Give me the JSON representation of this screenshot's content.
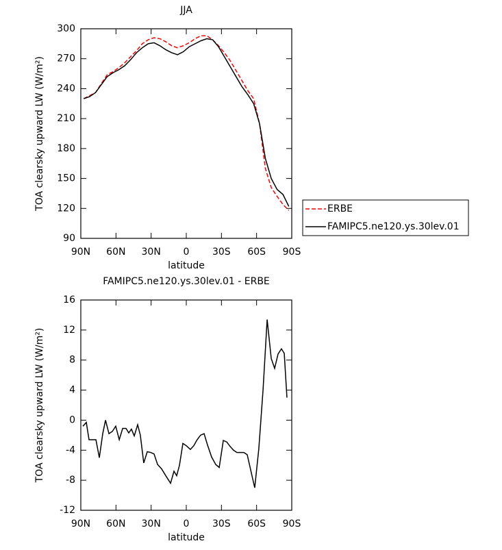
{
  "chart_data": [
    {
      "type": "line",
      "title": "JJA",
      "xlabel": "latitude",
      "ylabel": "TOA clearsky upward LW (W/m²)",
      "x": [
        87.5,
        82.5,
        77.5,
        72.5,
        67.5,
        62.5,
        57.5,
        52.5,
        47.5,
        42.5,
        37.5,
        32.5,
        27.5,
        22.5,
        17.5,
        12.5,
        7.5,
        2.5,
        -2.5,
        -7.5,
        -12.5,
        -17.5,
        -22.5,
        -27.5,
        -32.5,
        -37.5,
        -42.5,
        -47.5,
        -52.5,
        -57.5,
        -62.5,
        -67.5,
        -72.5,
        -77.5,
        -82.5,
        -87.5
      ],
      "series": [
        {
          "name": "ERBE",
          "color": "#ff0000",
          "linestyle": "dashed",
          "values": [
            230,
            233,
            236,
            245,
            254,
            257,
            261,
            266,
            272,
            278,
            285,
            289,
            291,
            290,
            287,
            283,
            281,
            283,
            286,
            290,
            293,
            293,
            289,
            283,
            276,
            268,
            258,
            248,
            238,
            230,
            205,
            160,
            141,
            132,
            124,
            118
          ]
        },
        {
          "name": "FAMIPC5.ne120.ys.30lev.01",
          "color": "#000000",
          "linestyle": "solid",
          "values": [
            230,
            232,
            236,
            244,
            252,
            256,
            259,
            263,
            269,
            276,
            281,
            285,
            286,
            283,
            279,
            276,
            274,
            277,
            282,
            285,
            288,
            290,
            289,
            282,
            272,
            262,
            252,
            242,
            234,
            225,
            205,
            170,
            150,
            139,
            134,
            122
          ]
        }
      ],
      "xlim": [
        90,
        -90
      ],
      "xticks": [
        {
          "value": 90,
          "label": "90N"
        },
        {
          "value": 60,
          "label": "60N"
        },
        {
          "value": 30,
          "label": "30N"
        },
        0,
        {
          "value": -30,
          "label": "30S"
        },
        {
          "value": -60,
          "label": "60S"
        },
        {
          "value": -90,
          "label": "90S"
        }
      ],
      "ylim": [
        90,
        300
      ],
      "yticks": [
        90,
        120,
        150,
        180,
        210,
        240,
        270,
        300
      ],
      "legend": "right"
    },
    {
      "type": "line",
      "title": "FAMIPC5.ne120.ys.30lev.01 - ERBE",
      "xlabel": "latitude",
      "ylabel": "TOA clearsky upward LW (W/m²)",
      "x": [
        88.2,
        85.3,
        83.0,
        77.1,
        74.2,
        71.3,
        68.9,
        66.0,
        63.1,
        60.2,
        57.2,
        54.3,
        51.4,
        49.1,
        46.8,
        44.4,
        41.5,
        39.2,
        36.3,
        33.3,
        30.4,
        27.5,
        24.5,
        21.0,
        17.5,
        13.4,
        10.5,
        8.2,
        5.8,
        2.9,
        0.0,
        -3.5,
        -6.4,
        -9.3,
        -12.2,
        -15.2,
        -18.1,
        -21.6,
        -25.1,
        -28.1,
        -31.6,
        -34.5,
        -37.4,
        -40.3,
        -43.2,
        -49.1,
        -52.0,
        -58.4,
        -61.9,
        -65.5,
        -69.0,
        -72.5,
        -75.4,
        -78.3,
        -81.2,
        -83.6,
        -85.9
      ],
      "values": [
        -0.8,
        -0.3,
        -2.6,
        -2.6,
        -5.0,
        -1.8,
        0,
        -1.8,
        -1.5,
        -0.8,
        -2.6,
        -1.1,
        -1.1,
        -1.7,
        -1.2,
        -2.1,
        -0.6,
        -2.0,
        -5.7,
        -4.2,
        -4.3,
        -4.5,
        -5.9,
        -6.5,
        -7.4,
        -8.4,
        -6.8,
        -7.4,
        -6.0,
        -3.1,
        -3.4,
        -3.9,
        -3.4,
        -2.6,
        -2.0,
        -1.8,
        -3.3,
        -4.9,
        -5.9,
        -6.3,
        -2.7,
        -2.9,
        -3.5,
        -4.0,
        -4.3,
        -4.3,
        -4.6,
        -9.0,
        -3.8,
        4.0,
        13.4,
        8.2,
        6.9,
        8.8,
        9.5,
        8.9,
        3.0
      ],
      "color": "#000000",
      "xlim": [
        90,
        -90
      ],
      "xticks": [
        {
          "value": 90,
          "label": "90N"
        },
        {
          "value": 60,
          "label": "60N"
        },
        {
          "value": 30,
          "label": "30N"
        },
        0,
        {
          "value": -30,
          "label": "30S"
        },
        {
          "value": -60,
          "label": "60S"
        },
        {
          "value": -90,
          "label": "90S"
        }
      ],
      "ylim": [
        -12,
        16
      ],
      "yticks": [
        -12,
        -8,
        -4,
        0,
        4,
        8,
        12,
        16
      ]
    }
  ]
}
